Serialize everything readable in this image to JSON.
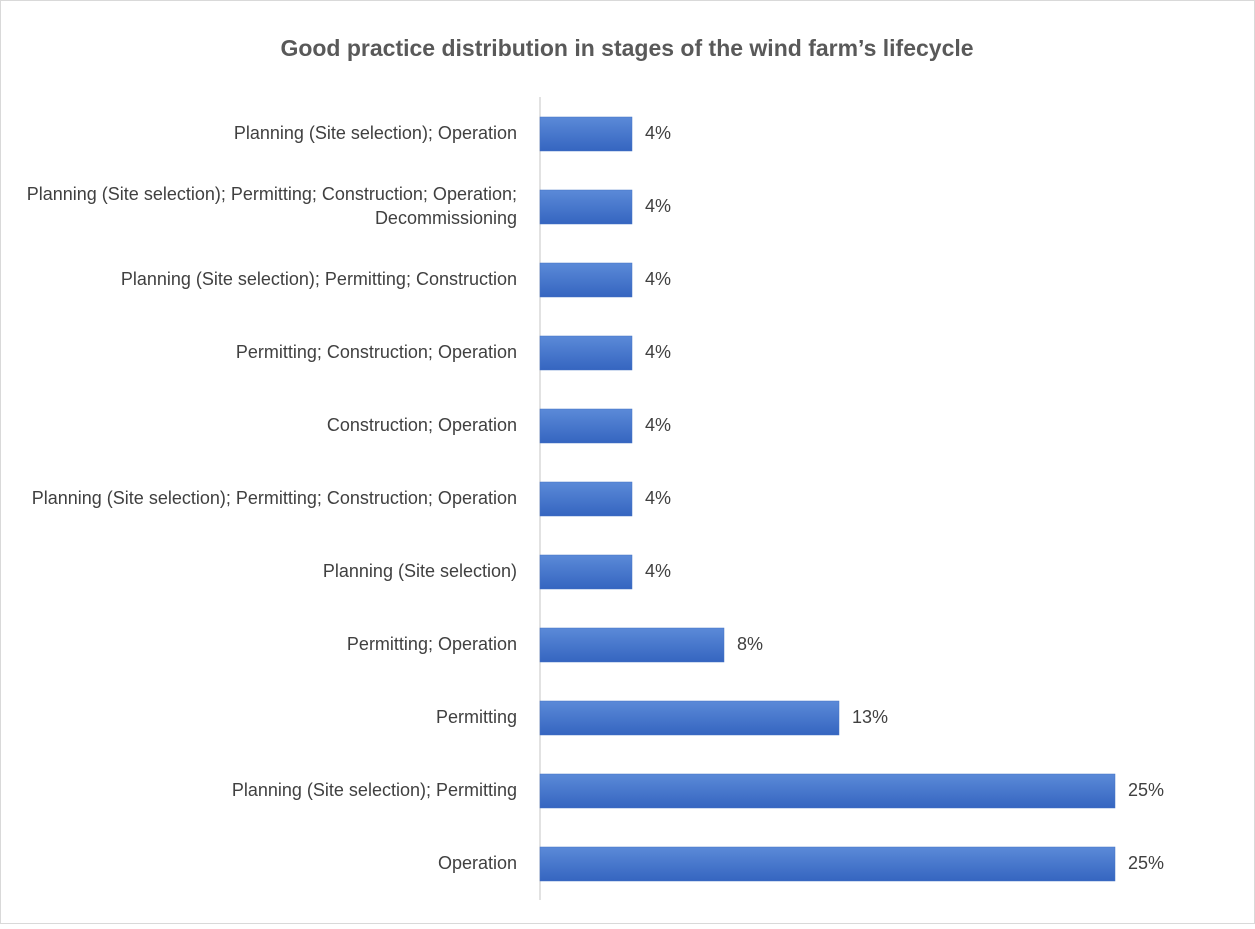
{
  "chart_data": {
    "type": "barh",
    "title": "Good practice distribution in stages of the wind farm’s lifecycle",
    "categories": [
      "Planning (Site selection); Operation",
      "Planning (Site selection); Permitting; Construction; Operation; Decommissioning",
      "Planning (Site selection); Permitting; Construction",
      "Permitting; Construction; Operation",
      "Construction; Operation",
      "Planning (Site selection); Permitting; Construction; Operation",
      "Planning (Site selection)",
      "Permitting; Operation",
      "Permitting",
      "Planning (Site selection); Permitting",
      "Operation"
    ],
    "values": [
      4,
      4,
      4,
      4,
      4,
      4,
      4,
      8,
      13,
      25,
      25
    ],
    "value_labels": [
      "4%",
      "4%",
      "4%",
      "4%",
      "4%",
      "4%",
      "4%",
      "8%",
      "13%",
      "25%",
      "25%"
    ],
    "color": "#4472c4",
    "xlim": [
      0,
      25
    ]
  }
}
